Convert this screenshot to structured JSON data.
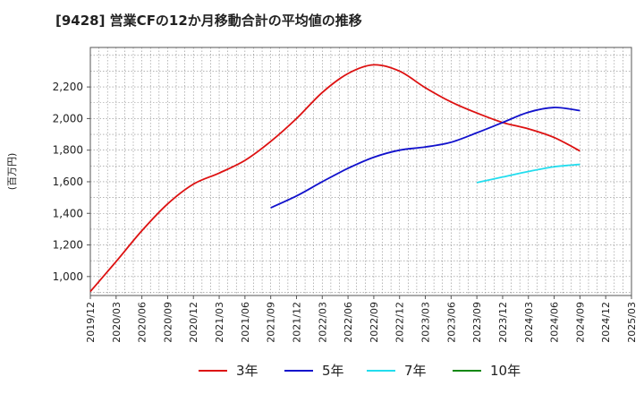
{
  "chart_data": {
    "type": "line",
    "title": "[9428]  営業CFの12か月移動合計の平均値の推移",
    "ylabel": "(百万円)",
    "xlabel": "",
    "ylim": [
      880,
      2450
    ],
    "yticks": [
      1000,
      1200,
      1400,
      1600,
      1800,
      2000,
      2200
    ],
    "ytick_labels": [
      "1,000",
      "1,200",
      "1,400",
      "1,600",
      "1,800",
      "2,000",
      "2,200"
    ],
    "x_ticks": [
      "2019/12",
      "2020/03",
      "2020/06",
      "2020/09",
      "2020/12",
      "2021/03",
      "2021/06",
      "2021/09",
      "2021/12",
      "2022/03",
      "2022/06",
      "2022/09",
      "2022/12",
      "2023/03",
      "2023/06",
      "2023/09",
      "2023/12",
      "2024/03",
      "2024/06",
      "2024/09",
      "2024/12",
      "2025/03"
    ],
    "grid": true,
    "legend_position": "bottom",
    "series": [
      {
        "name": "3年",
        "color": "#dd1111",
        "x": [
          "2019/12",
          "2020/03",
          "2020/06",
          "2020/09",
          "2020/12",
          "2021/03",
          "2021/06",
          "2021/09",
          "2021/12",
          "2022/03",
          "2022/06",
          "2022/09",
          "2022/12",
          "2023/03",
          "2023/06",
          "2023/09",
          "2023/12",
          "2024/03",
          "2024/06",
          "2024/09"
        ],
        "values": [
          905,
          1095,
          1290,
          1460,
          1585,
          1655,
          1735,
          1855,
          2000,
          2165,
          2285,
          2340,
          2300,
          2195,
          2105,
          2035,
          1975,
          1935,
          1880,
          1795
        ]
      },
      {
        "name": "5年",
        "color": "#1111cc",
        "x": [
          "2021/09",
          "2021/12",
          "2022/03",
          "2022/06",
          "2022/09",
          "2022/12",
          "2023/03",
          "2023/06",
          "2023/09",
          "2023/12",
          "2024/03",
          "2024/06",
          "2024/09"
        ],
        "values": [
          1435,
          1510,
          1600,
          1685,
          1755,
          1800,
          1820,
          1850,
          1910,
          1975,
          2040,
          2070,
          2050
        ]
      },
      {
        "name": "7年",
        "color": "#22ddee",
        "x": [
          "2023/09",
          "2023/12",
          "2024/03",
          "2024/06",
          "2024/09"
        ],
        "values": [
          1595,
          1630,
          1665,
          1695,
          1710
        ]
      },
      {
        "name": "10年",
        "color": "#118811",
        "x": [],
        "values": []
      }
    ]
  }
}
